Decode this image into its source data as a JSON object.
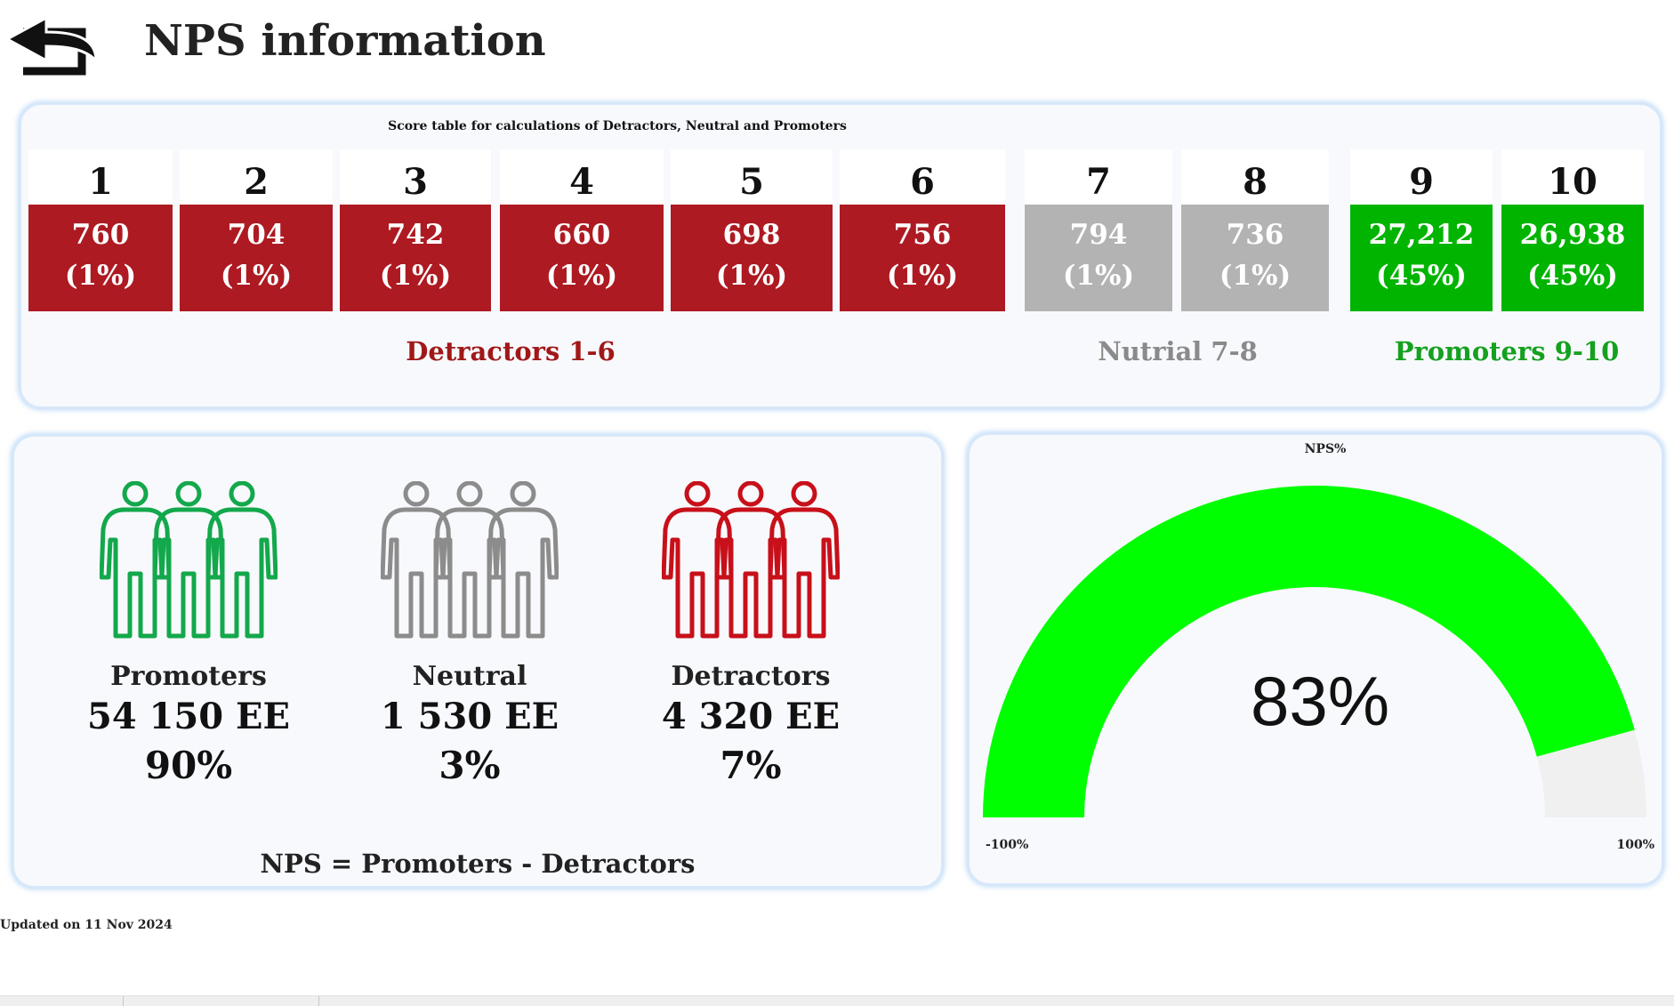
{
  "page": {
    "title": "NPS information",
    "updated": "Updated on 11 Nov 2024"
  },
  "score_table": {
    "caption": "Score table for calculations of Detractors, Neutral and Promoters",
    "scores": [
      {
        "score": "1",
        "count": "760",
        "pct": "(1%)",
        "group": "detractor"
      },
      {
        "score": "2",
        "count": "704",
        "pct": "(1%)",
        "group": "detractor"
      },
      {
        "score": "3",
        "count": "742",
        "pct": "(1%)",
        "group": "detractor"
      },
      {
        "score": "4",
        "count": "660",
        "pct": "(1%)",
        "group": "detractor"
      },
      {
        "score": "5",
        "count": "698",
        "pct": "(1%)",
        "group": "detractor"
      },
      {
        "score": "6",
        "count": "756",
        "pct": "(1%)",
        "group": "detractor"
      },
      {
        "score": "7",
        "count": "794",
        "pct": "(1%)",
        "group": "neutral"
      },
      {
        "score": "8",
        "count": "736",
        "pct": "(1%)",
        "group": "neutral"
      },
      {
        "score": "9",
        "count": "27,212",
        "pct": "(45%)",
        "group": "promoter"
      },
      {
        "score": "10",
        "count": "26,938",
        "pct": "(45%)",
        "group": "promoter"
      }
    ],
    "groups": {
      "detractors": "Detractors 1-6",
      "neutral": "Nutrial 7-8",
      "promoters": "Promoters 9-10"
    }
  },
  "segments": {
    "promoters": {
      "label": "Promoters",
      "count": "54 150 EE",
      "pct": "90%",
      "icon": "people-group-icon"
    },
    "neutral": {
      "label": "Neutral",
      "count": "1 530 EE",
      "pct": "3%",
      "icon": "people-group-icon"
    },
    "detractors": {
      "label": "Detractors",
      "count": "4 320 EE",
      "pct": "7%",
      "icon": "people-group-icon"
    },
    "formula": "NPS = Promoters - Detractors"
  },
  "gauge": {
    "title": "NPS%",
    "value_label": "83%",
    "value": 83,
    "min": -100,
    "max": 100,
    "min_label": "-100%",
    "max_label": "100%"
  },
  "colors": {
    "detractor": "#ad1a22",
    "neutral": "#b3b3b3",
    "promoter": "#00b400",
    "detractor_text": "#a01818",
    "neutral_text": "#8a8a8a",
    "promoter_text": "#16a020",
    "promoter_icon": "#14a84c",
    "neutral_icon": "#8c8c8c",
    "detractor_icon": "#c8101a",
    "gauge_fill": "#00ff00",
    "gauge_track": "#f0f0f0"
  }
}
